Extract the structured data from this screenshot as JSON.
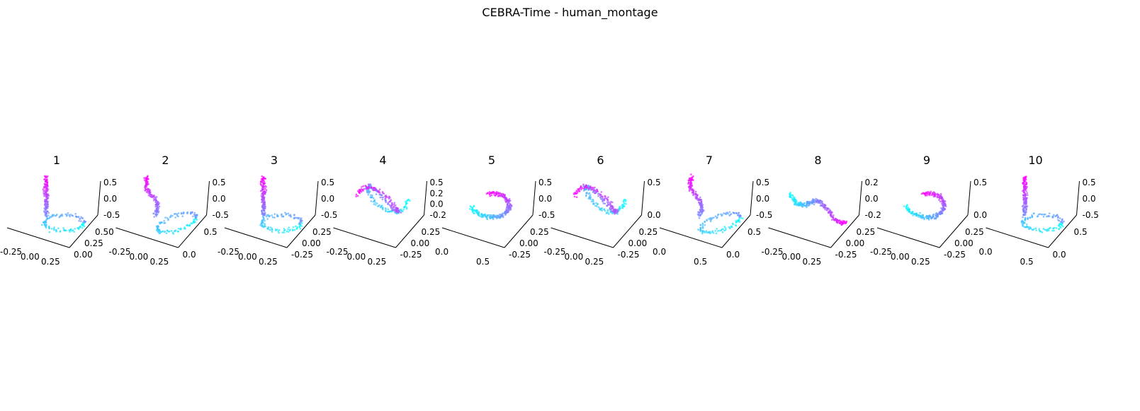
{
  "figure": {
    "title": "CEBRA-Time - human_montage"
  },
  "chart_data": [
    {
      "type": "scatter",
      "title": "1",
      "x_ticks": [
        "-0.25",
        "0.00",
        "0.25"
      ],
      "y_ticks": [
        "0.00",
        "0.25",
        "0.50"
      ],
      "z_ticks": [
        "-0.5",
        "0.0",
        "0.5"
      ],
      "shape": "stem-loop",
      "colormap": [
        "#00ffff",
        "#ff00ff"
      ]
    },
    {
      "type": "scatter",
      "title": "2",
      "x_ticks": [
        "-0.25",
        "0.00",
        "0.25"
      ],
      "y_ticks": [
        "0.0",
        "0.5"
      ],
      "z_ticks": [
        "-0.5",
        "0.0",
        "0.5"
      ],
      "shape": "stem-loop-tilted",
      "colormap": [
        "#00ffff",
        "#ff00ff"
      ]
    },
    {
      "type": "scatter",
      "title": "3",
      "x_ticks": [
        "-0.25",
        "0.00",
        "0.25"
      ],
      "y_ticks": [
        "-0.25",
        "0.00",
        "0.25"
      ],
      "z_ticks": [
        "-0.5",
        "0.0",
        "0.5"
      ],
      "shape": "stem-loop",
      "colormap": [
        "#00ffff",
        "#ff00ff"
      ]
    },
    {
      "type": "scatter",
      "title": "4",
      "x_ticks": [
        "-0.25",
        "0.00",
        "0.25"
      ],
      "y_ticks": [
        "-0.25",
        "0.00",
        "0.25"
      ],
      "z_ticks": [
        "-0.2",
        "0.0",
        "0.2",
        "0.5"
      ],
      "shape": "double-loop",
      "colormap": [
        "#00ffff",
        "#ff00ff"
      ]
    },
    {
      "type": "scatter",
      "title": "5",
      "x_ticks": [
        "0.0",
        "0.5"
      ],
      "y_ticks": [
        "-0.25",
        "0.00",
        "0.25"
      ],
      "z_ticks": [
        "-0.5",
        "0.0",
        "0.5"
      ],
      "shape": "arc",
      "colormap": [
        "#00ffff",
        "#ff00ff"
      ]
    },
    {
      "type": "scatter",
      "title": "6",
      "x_ticks": [
        "-0.25",
        "0.00",
        "0.25"
      ],
      "y_ticks": [
        "-0.25",
        "0.00",
        "0.25"
      ],
      "z_ticks": [
        "0.0",
        "0.5"
      ],
      "shape": "double-loop",
      "colormap": [
        "#00ffff",
        "#ff00ff"
      ]
    },
    {
      "type": "scatter",
      "title": "7",
      "x_ticks": [
        "0.0",
        "0.5"
      ],
      "y_ticks": [
        "0.0",
        "0.5"
      ],
      "z_ticks": [
        "-0.5",
        "0.0",
        "0.5"
      ],
      "shape": "stem-loop-tilted",
      "colormap": [
        "#00ffff",
        "#ff00ff"
      ]
    },
    {
      "type": "scatter",
      "title": "8",
      "x_ticks": [
        "-0.25",
        "0.00",
        "0.25"
      ],
      "y_ticks": [
        "-0.25",
        "0.00",
        "0.25"
      ],
      "z_ticks": [
        "-0.2",
        "0.0",
        "0.2"
      ],
      "shape": "diagonal",
      "colormap": [
        "#00ffff",
        "#ff00ff"
      ]
    },
    {
      "type": "scatter",
      "title": "9",
      "x_ticks": [
        "-0.25",
        "0.00",
        "0.25"
      ],
      "y_ticks": [
        "-0.25",
        "0.00",
        "0.25"
      ],
      "z_ticks": [
        "0.0",
        "0.5"
      ],
      "shape": "arc",
      "colormap": [
        "#00ffff",
        "#ff00ff"
      ]
    },
    {
      "type": "scatter",
      "title": "10",
      "x_ticks": [
        "0.0",
        "0.5"
      ],
      "y_ticks": [
        "0.0",
        "0.5"
      ],
      "z_ticks": [
        "-0.5",
        "0.0",
        "0.5"
      ],
      "shape": "stem-loop",
      "colormap": [
        "#00ffff",
        "#ff00ff"
      ]
    }
  ]
}
